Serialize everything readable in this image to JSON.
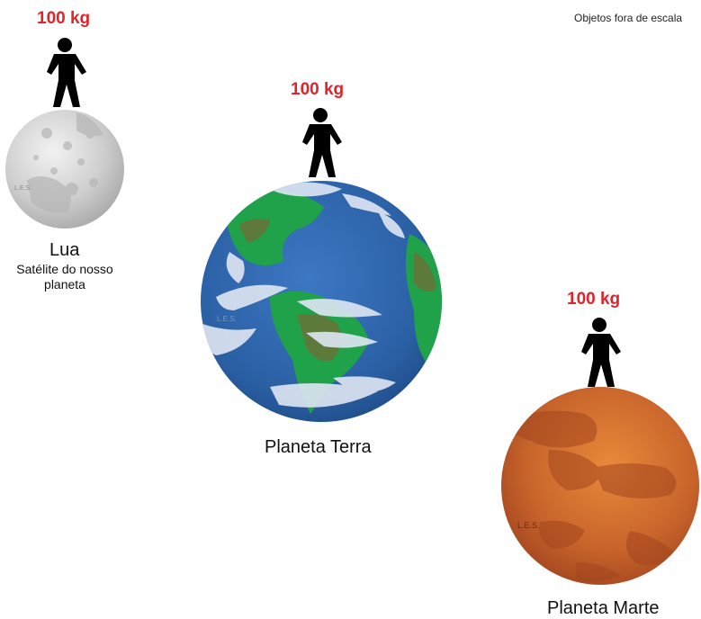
{
  "note": "Objetos fora de escala",
  "moon": {
    "mass": "100 kg",
    "name": "Lua",
    "subtitle": "Satélite do nosso planeta",
    "watermark": "L.E.S."
  },
  "earth": {
    "mass": "100 kg",
    "name": "Planeta Terra",
    "watermark": "L.E.S."
  },
  "mars": {
    "mass": "100 kg",
    "name": "Planeta Marte",
    "watermark": "L.E.S."
  },
  "colors": {
    "mass_label": "#e2232a",
    "moon": "#c9c9c9",
    "earth_ocean": "#2d63a8",
    "earth_land": "#1fa24a",
    "mars": "#c8642b",
    "figure": "#000000"
  },
  "icons": [
    "person-icon",
    "moon-icon",
    "earth-icon",
    "mars-icon"
  ]
}
